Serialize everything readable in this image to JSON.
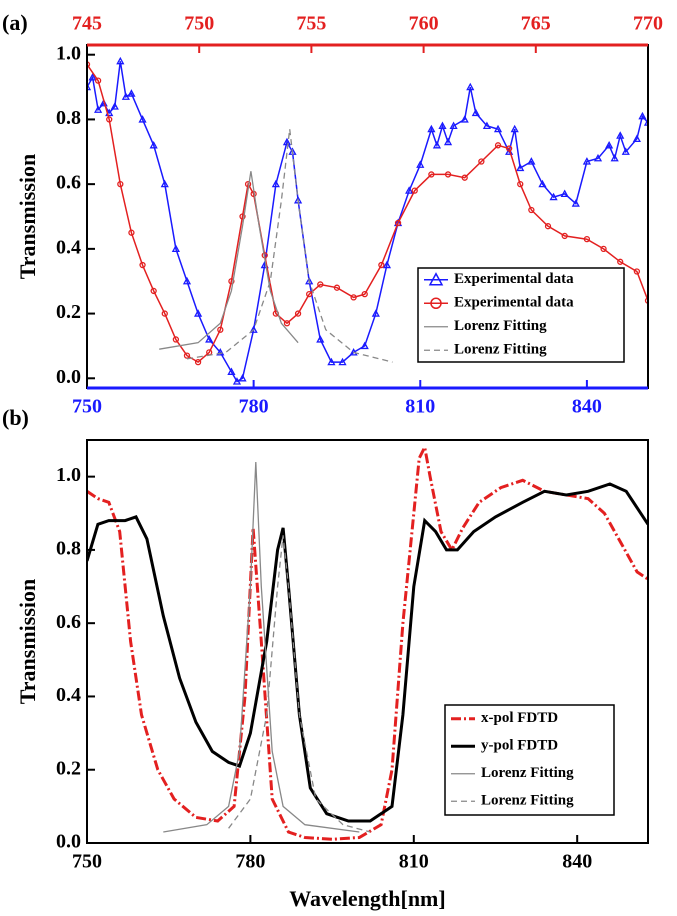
{
  "chart_data": [
    {
      "type": "line",
      "panel_label": "(a)",
      "ylabel": "Transmission",
      "xlim": [
        750,
        851
      ],
      "xticks": [
        750,
        780,
        810,
        840
      ],
      "x2lim": [
        745,
        770
      ],
      "x2ticks": [
        745,
        750,
        755,
        760,
        765,
        770
      ],
      "ylim": [
        -0.03,
        1.03
      ],
      "yticks": [
        {
          "value": 0,
          "label": "0.0"
        },
        {
          "value": 0.2,
          "label": "0.2"
        },
        {
          "value": 0.4,
          "label": "0.4"
        },
        {
          "value": 0.6,
          "label": "0.6"
        },
        {
          "value": 0.8,
          "label": "0.8"
        },
        {
          "value": 1,
          "label": "1.0"
        }
      ],
      "legend": "lower right",
      "series": [
        {
          "name": "Experimental data",
          "color": "#1a1aff",
          "marker": "triangle",
          "style": "solid",
          "x": [
            750,
            751,
            752,
            753,
            754,
            755,
            756,
            757,
            758,
            760,
            762,
            764,
            766,
            768,
            770,
            772,
            774,
            776,
            777,
            778,
            780,
            782,
            784,
            786,
            787,
            788,
            790,
            792,
            794,
            796,
            798,
            800,
            802,
            804,
            806,
            808,
            810,
            812,
            813,
            814,
            815,
            816,
            818,
            819,
            820,
            822,
            824,
            826,
            827,
            828,
            830,
            832,
            834,
            836,
            838,
            840,
            842,
            844,
            845,
            846,
            847,
            849,
            850,
            851
          ],
          "values": [
            0.9,
            0.93,
            0.83,
            0.85,
            0.82,
            0.84,
            0.98,
            0.87,
            0.88,
            0.8,
            0.72,
            0.6,
            0.4,
            0.3,
            0.2,
            0.12,
            0.08,
            0.02,
            -0.01,
            0.0,
            0.15,
            0.35,
            0.6,
            0.73,
            0.7,
            0.55,
            0.3,
            0.12,
            0.05,
            0.05,
            0.08,
            0.1,
            0.2,
            0.35,
            0.48,
            0.58,
            0.66,
            0.77,
            0.72,
            0.78,
            0.73,
            0.78,
            0.8,
            0.9,
            0.82,
            0.78,
            0.77,
            0.7,
            0.77,
            0.65,
            0.67,
            0.6,
            0.56,
            0.57,
            0.54,
            0.67,
            0.68,
            0.72,
            0.68,
            0.75,
            0.7,
            0.74,
            0.81,
            0.79
          ]
        },
        {
          "name": "Experimental data",
          "color": "#e32020",
          "marker": "circle",
          "style": "solid",
          "x": [
            750,
            752,
            754,
            756,
            758,
            760,
            762,
            764,
            766,
            768,
            770,
            772,
            774,
            776,
            778,
            779,
            780,
            782,
            784,
            786,
            788,
            790,
            792,
            795,
            798,
            800,
            803,
            806,
            809,
            812,
            815,
            818,
            821,
            824,
            826,
            828,
            830,
            833,
            836,
            840,
            843,
            846,
            849,
            851
          ],
          "values": [
            0.97,
            0.92,
            0.8,
            0.6,
            0.45,
            0.35,
            0.27,
            0.2,
            0.12,
            0.07,
            0.05,
            0.08,
            0.15,
            0.3,
            0.5,
            0.6,
            0.57,
            0.38,
            0.2,
            0.17,
            0.2,
            0.26,
            0.29,
            0.28,
            0.25,
            0.26,
            0.35,
            0.48,
            0.58,
            0.63,
            0.63,
            0.62,
            0.67,
            0.72,
            0.71,
            0.6,
            0.52,
            0.47,
            0.44,
            0.43,
            0.4,
            0.36,
            0.33,
            0.24
          ]
        },
        {
          "name": "Lorenz Fitting",
          "color": "#888888",
          "style": "solid",
          "x": [
            763,
            770,
            774,
            776,
            778,
            779.5,
            781,
            783,
            785,
            788
          ],
          "values": [
            0.09,
            0.11,
            0.17,
            0.27,
            0.47,
            0.64,
            0.47,
            0.27,
            0.17,
            0.11
          ]
        },
        {
          "name": "Lorenz Fitting",
          "color": "#888888",
          "style": "dashed",
          "x": [
            768,
            775,
            780,
            783,
            785,
            786.5,
            788,
            790,
            793,
            798,
            805
          ],
          "values": [
            0.06,
            0.08,
            0.15,
            0.3,
            0.55,
            0.77,
            0.55,
            0.3,
            0.15,
            0.08,
            0.05
          ]
        }
      ]
    },
    {
      "type": "line",
      "panel_label": "(b)",
      "ylabel": "Transmission",
      "xlabel": "Wavelength[nm]",
      "xlim": [
        750,
        853
      ],
      "xticks": [
        750,
        780,
        810,
        840
      ],
      "ylim": [
        0,
        1.1
      ],
      "yticks": [
        {
          "value": 0,
          "label": "0.0"
        },
        {
          "value": 0.2,
          "label": "0.2"
        },
        {
          "value": 0.4,
          "label": "0.4"
        },
        {
          "value": 0.6,
          "label": "0.6"
        },
        {
          "value": 0.8,
          "label": "0.8"
        },
        {
          "value": 1,
          "label": "1.0"
        }
      ],
      "legend": "lower right",
      "series": [
        {
          "name": "x-pol  FDTD",
          "color": "#e32020",
          "style": "dashdot",
          "x": [
            750,
            752,
            754,
            756,
            758,
            760,
            763,
            766,
            770,
            774,
            777,
            779,
            780.5,
            782,
            784,
            787,
            790,
            795,
            800,
            804,
            806,
            808,
            810,
            811,
            812,
            813,
            815,
            817,
            819,
            822,
            826,
            830,
            834,
            838,
            842,
            845,
            848,
            851,
            853
          ],
          "values": [
            0.96,
            0.94,
            0.93,
            0.85,
            0.55,
            0.35,
            0.2,
            0.12,
            0.07,
            0.06,
            0.1,
            0.4,
            0.86,
            0.55,
            0.12,
            0.03,
            0.015,
            0.01,
            0.015,
            0.05,
            0.2,
            0.6,
            0.9,
            1.05,
            1.08,
            1.0,
            0.85,
            0.8,
            0.86,
            0.93,
            0.97,
            0.99,
            0.96,
            0.95,
            0.94,
            0.9,
            0.82,
            0.74,
            0.72
          ]
        },
        {
          "name": "y-pol  FDTD",
          "color": "#000000",
          "style": "solid",
          "x": [
            750,
            752,
            754,
            757,
            759,
            761,
            764,
            767,
            770,
            773,
            776,
            778,
            780,
            783,
            785,
            786,
            787,
            789,
            791,
            794,
            798,
            802,
            806,
            808,
            810,
            812,
            814,
            816,
            818,
            821,
            825,
            830,
            834,
            838,
            842,
            846,
            849,
            853
          ],
          "values": [
            0.77,
            0.87,
            0.88,
            0.88,
            0.89,
            0.83,
            0.62,
            0.45,
            0.33,
            0.25,
            0.22,
            0.21,
            0.3,
            0.55,
            0.8,
            0.86,
            0.7,
            0.35,
            0.15,
            0.08,
            0.06,
            0.06,
            0.1,
            0.35,
            0.7,
            0.88,
            0.85,
            0.8,
            0.8,
            0.85,
            0.89,
            0.93,
            0.96,
            0.95,
            0.96,
            0.98,
            0.96,
            0.87
          ]
        },
        {
          "name": "Lorenz Fitting",
          "color": "#888888",
          "style": "solid",
          "x": [
            764,
            772,
            776,
            778,
            780,
            781,
            782,
            784,
            786,
            790,
            800
          ],
          "values": [
            0.03,
            0.05,
            0.1,
            0.25,
            0.7,
            1.04,
            0.7,
            0.25,
            0.1,
            0.05,
            0.03
          ]
        },
        {
          "name": "Lorenz Fitting",
          "color": "#888888",
          "style": "dashed",
          "x": [
            776,
            780,
            783,
            785,
            786,
            787,
            789,
            792,
            797,
            802
          ],
          "values": [
            0.04,
            0.12,
            0.35,
            0.7,
            0.84,
            0.7,
            0.35,
            0.12,
            0.05,
            0.03
          ]
        }
      ]
    }
  ]
}
